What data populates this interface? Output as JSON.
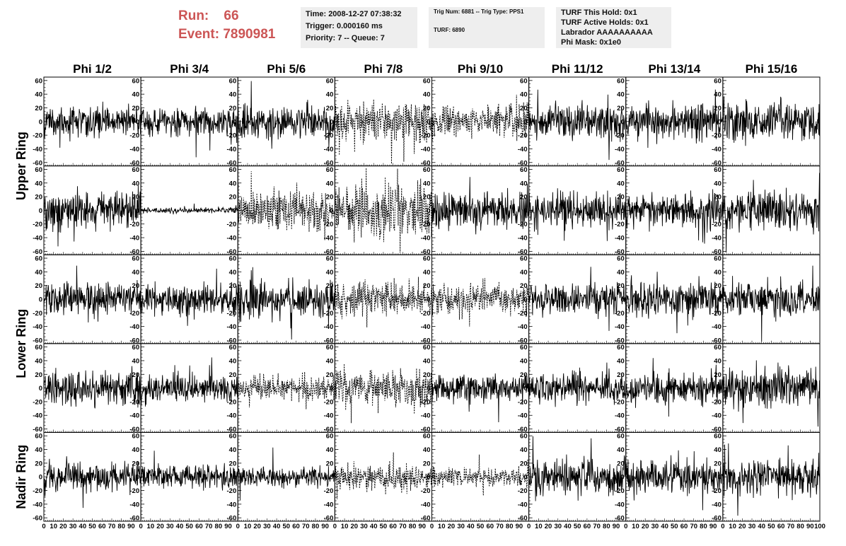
{
  "header": {
    "run_label": "Run:",
    "run_value": "66",
    "event_label": "Event:",
    "event_value": "7890981",
    "box1": [
      "Time: 2008-12-27 07:38:32",
      "Trigger: 0.000160 ms",
      "Priority: 7 -- Queue: 7"
    ],
    "box2": [
      "Trig Num: 6881 -- Trig Type: PPS1",
      "TURF: 6890"
    ],
    "box3": [
      "TURF This Hold: 0x1",
      "TURF Active Holds: 0x1",
      "Labrador AAAAAAAAAA",
      "Phi Mask: 0x1e0"
    ]
  },
  "chart_data": {
    "type": "line",
    "columns": [
      "Phi 1/2",
      "Phi 3/4",
      "Phi 5/6",
      "Phi 7/8",
      "Phi 9/10",
      "Phi 11/12",
      "Phi 13/14",
      "Phi 15/16"
    ],
    "row_labels": [
      "Upper Ring",
      "Lower Ring",
      "Nadir Ring"
    ],
    "ylim": [
      -65,
      65
    ],
    "xlim": [
      0,
      100
    ],
    "yticks": [
      "60",
      "40",
      "20",
      "0",
      "-20",
      "-40",
      "-60"
    ],
    "xticks": [
      "0",
      "10",
      "20",
      "30",
      "40",
      "50",
      "60",
      "70",
      "80",
      "90",
      "100"
    ],
    "traces": [
      [
        {
          "style": "solid",
          "amp": 11
        },
        {
          "style": "solid",
          "amp": 10
        },
        {
          "style": "solid",
          "amp": 12
        },
        {
          "style": "dashed",
          "amp": 14
        },
        {
          "style": "dashed",
          "amp": 12
        },
        {
          "style": "solid",
          "amp": 12
        },
        {
          "style": "solid",
          "amp": 13
        },
        {
          "style": "solid",
          "amp": 14
        }
      ],
      [
        {
          "style": "solid",
          "amp": 14
        },
        {
          "style": "solid",
          "amp": 2
        },
        {
          "style": "dashed",
          "amp": 14
        },
        {
          "style": "dashed",
          "amp": 18
        },
        {
          "style": "solid",
          "amp": 13
        },
        {
          "style": "solid",
          "amp": 13
        },
        {
          "style": "solid",
          "amp": 12
        },
        {
          "style": "solid",
          "amp": 13
        }
      ],
      [
        {
          "style": "solid",
          "amp": 12
        },
        {
          "style": "solid",
          "amp": 11
        },
        {
          "style": "solid",
          "amp": 13
        },
        {
          "style": "dashed",
          "amp": 12
        },
        {
          "style": "dashed",
          "amp": 10
        },
        {
          "style": "solid",
          "amp": 11
        },
        {
          "style": "solid",
          "amp": 13
        },
        {
          "style": "solid",
          "amp": 12
        }
      ],
      [
        {
          "style": "solid",
          "amp": 13
        },
        {
          "style": "solid",
          "amp": 10
        },
        {
          "style": "dashed",
          "amp": 9
        },
        {
          "style": "dashed",
          "amp": 14
        },
        {
          "style": "solid",
          "amp": 10
        },
        {
          "style": "solid",
          "amp": 11
        },
        {
          "style": "solid",
          "amp": 11
        },
        {
          "style": "solid",
          "amp": 15
        }
      ],
      [
        {
          "style": "solid",
          "amp": 11
        },
        {
          "style": "solid",
          "amp": 8
        },
        {
          "style": "solid",
          "amp": 7
        },
        {
          "style": "dashed",
          "amp": 9
        },
        {
          "style": "dashed",
          "amp": 7
        },
        {
          "style": "solid",
          "amp": 14
        },
        {
          "style": "solid",
          "amp": 12
        },
        {
          "style": "solid",
          "amp": 13
        }
      ]
    ]
  }
}
